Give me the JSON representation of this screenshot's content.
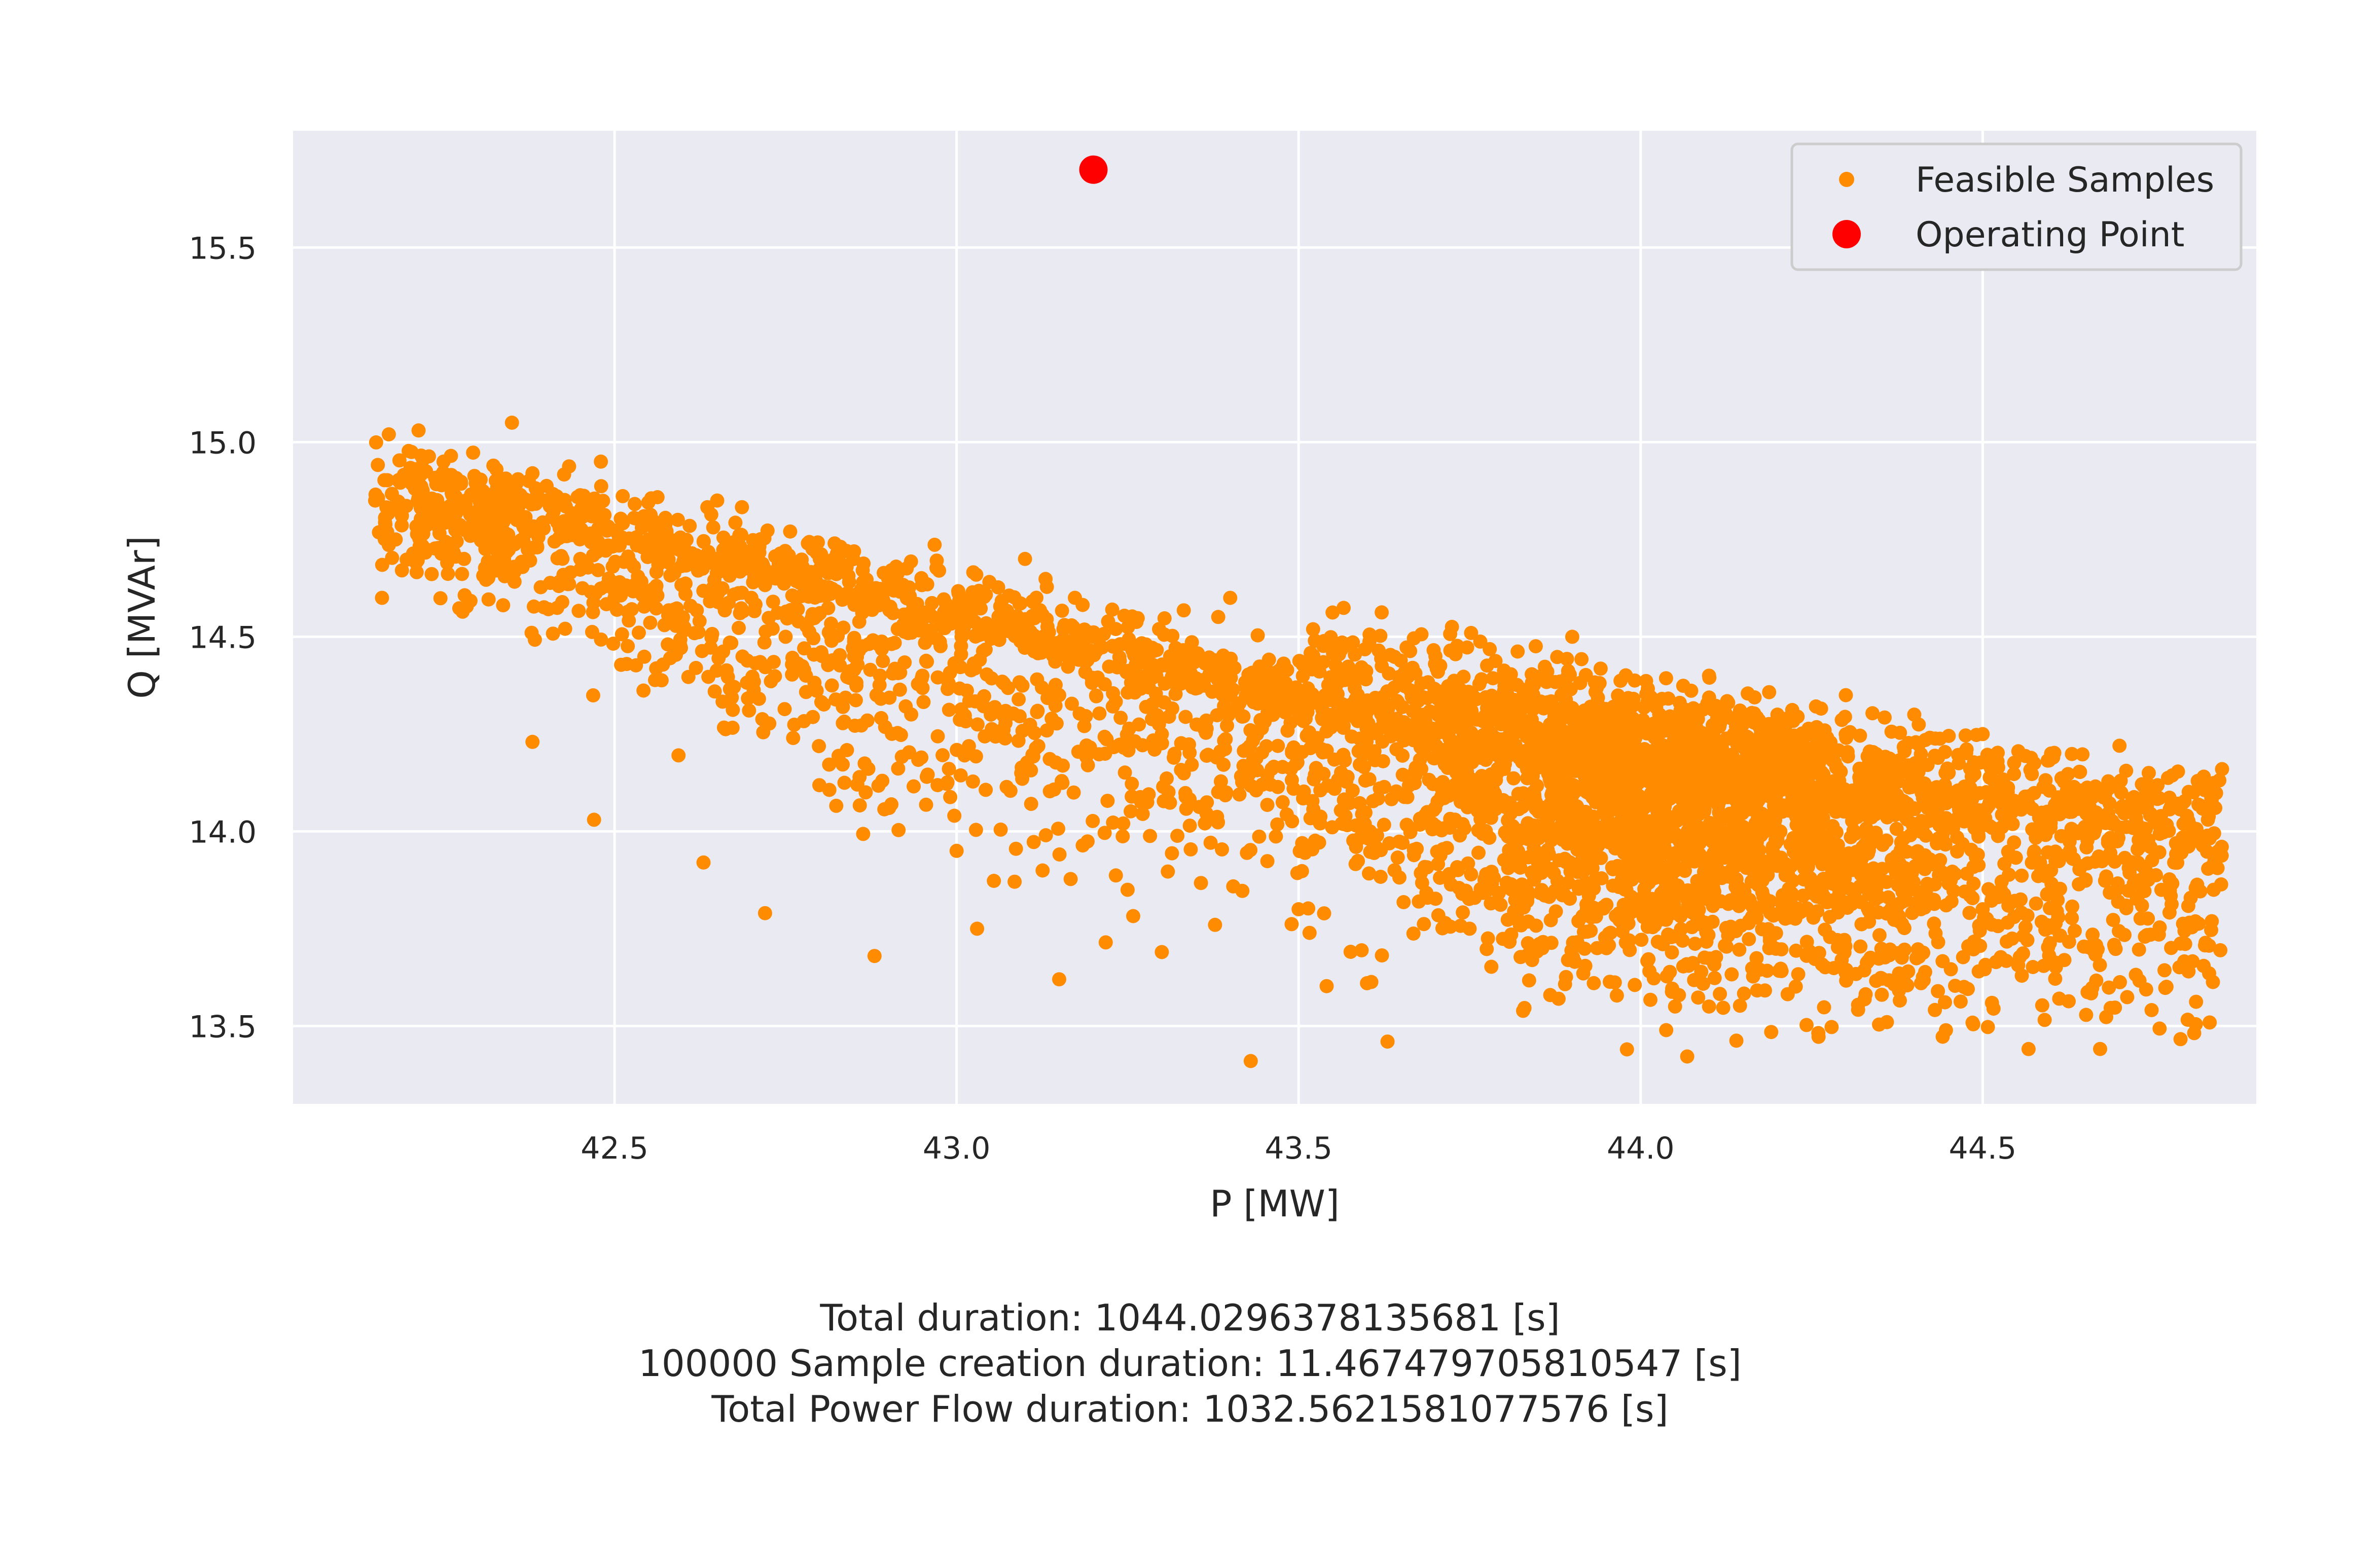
{
  "chart_data": {
    "type": "scatter",
    "xlabel": "P [MW]",
    "ylabel": "Q [MVAr]",
    "xlim": [
      42.03,
      44.9
    ],
    "ylim": [
      13.3,
      15.8
    ],
    "x_ticks": [
      "42.5",
      "43.0",
      "43.5",
      "44.0",
      "44.5"
    ],
    "y_ticks": [
      "13.5",
      "14.0",
      "14.5",
      "15.0",
      "15.5"
    ],
    "x_tick_values": [
      42.5,
      43.0,
      43.5,
      44.0,
      44.5
    ],
    "y_tick_values": [
      13.5,
      14.0,
      14.5,
      15.0,
      15.5
    ],
    "grid": true,
    "legend_position": "top-right",
    "series": [
      {
        "name": "Feasible Samples",
        "color": "#FF8C00",
        "marker": "dot",
        "points": [
          [
            42.15,
            14.85
          ],
          [
            42.16,
            14.6
          ],
          [
            42.17,
            15.02
          ],
          [
            42.18,
            14.75
          ],
          [
            42.2,
            14.9
          ],
          [
            42.22,
            14.8
          ],
          [
            42.25,
            14.95
          ],
          [
            42.28,
            14.7
          ],
          [
            42.3,
            14.88
          ],
          [
            42.33,
            14.8
          ],
          [
            42.35,
            15.05
          ],
          [
            42.38,
            14.92
          ],
          [
            42.4,
            14.85
          ],
          [
            42.45,
            14.7
          ],
          [
            42.48,
            14.95
          ],
          [
            42.5,
            14.6
          ],
          [
            42.55,
            14.75
          ],
          [
            42.6,
            14.55
          ],
          [
            42.65,
            14.85
          ],
          [
            42.7,
            14.6
          ],
          [
            42.75,
            14.5
          ],
          [
            42.8,
            14.7
          ],
          [
            42.85,
            14.45
          ],
          [
            42.9,
            14.65
          ],
          [
            42.95,
            14.4
          ],
          [
            43.0,
            14.55
          ],
          [
            43.05,
            14.3
          ],
          [
            43.1,
            14.7
          ],
          [
            43.15,
            14.35
          ],
          [
            43.2,
            14.5
          ],
          [
            43.3,
            14.25
          ],
          [
            43.4,
            14.6
          ],
          [
            43.5,
            14.3
          ],
          [
            43.6,
            14.2
          ],
          [
            43.7,
            14.45
          ],
          [
            43.8,
            14.3
          ],
          [
            43.9,
            14.5
          ],
          [
            44.0,
            14.2
          ],
          [
            44.1,
            14.4
          ],
          [
            44.2,
            14.3
          ],
          [
            44.3,
            14.35
          ],
          [
            44.4,
            14.3
          ],
          [
            44.5,
            14.25
          ],
          [
            44.6,
            14.2
          ],
          [
            44.7,
            14.22
          ],
          [
            44.85,
            14.16
          ],
          [
            42.38,
            14.23
          ],
          [
            42.47,
            14.03
          ],
          [
            42.63,
            13.92
          ],
          [
            42.72,
            13.79
          ],
          [
            42.88,
            13.68
          ],
          [
            43.03,
            13.75
          ],
          [
            43.15,
            13.62
          ],
          [
            43.3,
            13.69
          ],
          [
            43.43,
            13.41
          ],
          [
            43.6,
            13.61
          ],
          [
            43.63,
            13.46
          ],
          [
            43.88,
            13.57
          ],
          [
            43.98,
            13.44
          ],
          [
            44.1,
            13.55
          ],
          [
            44.36,
            13.51
          ],
          [
            44.41,
            13.61
          ],
          [
            44.5,
            13.8
          ],
          [
            44.78,
            13.92
          ],
          [
            44.6,
            13.9
          ],
          [
            43.95,
            13.7
          ],
          [
            43.75,
            13.75
          ],
          [
            43.5,
            13.8
          ],
          [
            43.25,
            13.85
          ],
          [
            43.0,
            13.95
          ]
        ]
      },
      {
        "name": "Operating Point",
        "color": "#FF0000",
        "marker": "dot",
        "points": [
          [
            43.2,
            15.7
          ]
        ]
      }
    ],
    "annotations": [
      "Total duration: 1044.0296378135681 [s]",
      "100000 Sample creation duration: 11.467479705810547 [s]",
      "Total Power Flow duration: 1032.5621581077576 [s]"
    ]
  }
}
